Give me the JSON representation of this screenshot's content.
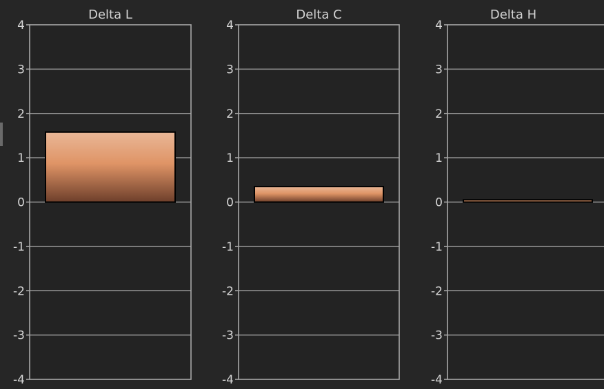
{
  "colors": {
    "background": "#262626",
    "plot_background": "#232323",
    "grid": "#9a9a9a",
    "frame": "#a8a8a8",
    "text": "#d4d4d4",
    "bar_top": "#e9b797",
    "bar_mid": "#df9466",
    "bar_bottom": "#6e3f2b",
    "bar_outline": "#000000"
  },
  "chart_data": [
    {
      "type": "bar",
      "title": "Delta L",
      "categories": [
        ""
      ],
      "values": [
        1.58
      ],
      "ylim": [
        -4,
        4
      ],
      "yticks": [
        4,
        3,
        2,
        1,
        0,
        -1,
        -2,
        -3,
        -4
      ],
      "ytick_labels": [
        "4",
        "3",
        "2",
        "1",
        "0",
        "-1",
        "-2",
        "-3",
        "-4"
      ],
      "grid": true,
      "legend": "none"
    },
    {
      "type": "bar",
      "title": "Delta C",
      "categories": [
        ""
      ],
      "values": [
        0.35
      ],
      "ylim": [
        -4,
        4
      ],
      "yticks": [
        4,
        3,
        2,
        1,
        0,
        -1,
        -2,
        -3,
        -4
      ],
      "ytick_labels": [
        "4",
        "3",
        "2",
        "1",
        "0",
        "-1",
        "-2",
        "-3",
        "-4"
      ],
      "grid": true,
      "legend": "none"
    },
    {
      "type": "bar",
      "title": "Delta H",
      "categories": [
        ""
      ],
      "values": [
        0.05
      ],
      "ylim": [
        -4,
        4
      ],
      "yticks": [
        4,
        3,
        2,
        1,
        0,
        -1,
        -2,
        -3,
        -4
      ],
      "ytick_labels": [
        "4",
        "3",
        "2",
        "1",
        "0",
        "-1",
        "-2",
        "-3",
        "-4"
      ],
      "grid": true,
      "legend": "none"
    }
  ]
}
